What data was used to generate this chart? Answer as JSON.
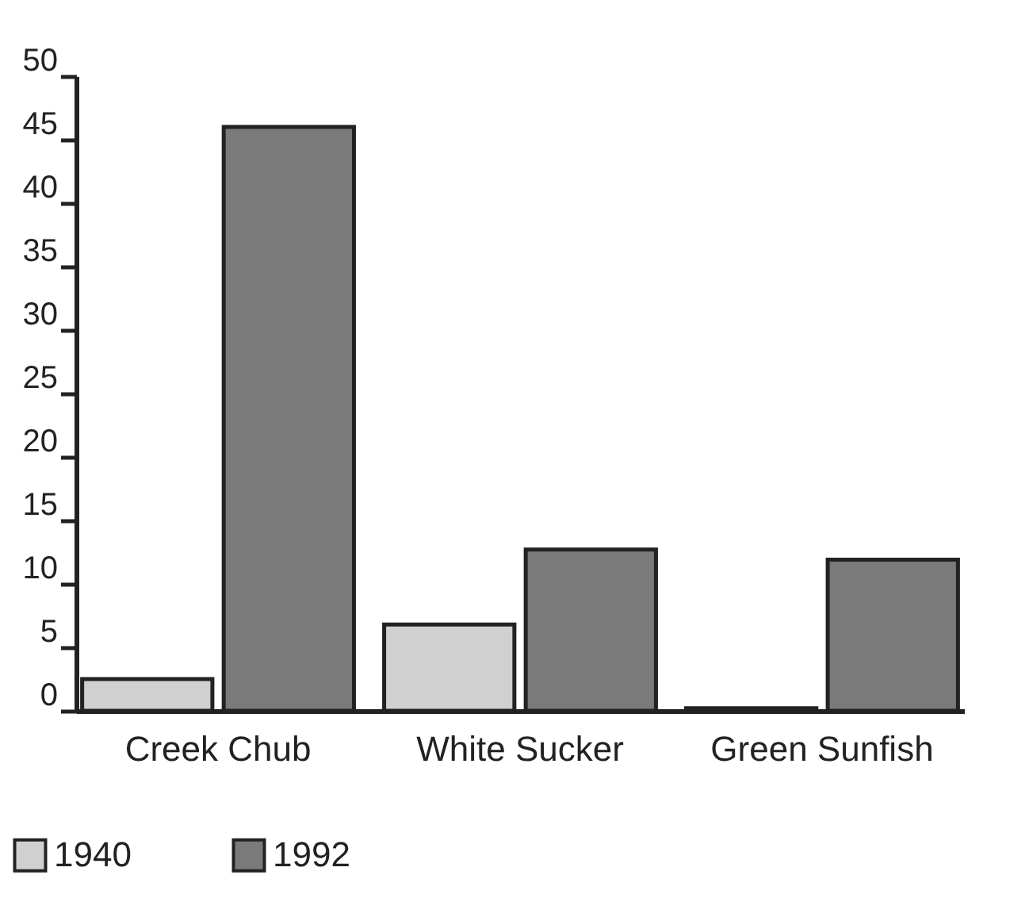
{
  "chart_data": {
    "type": "bar",
    "categories": [
      "Creek Chub",
      "White Sucker",
      "Green Sunfish"
    ],
    "series": [
      {
        "name": "1940",
        "color": "#d0d0d0",
        "values": [
          2.5,
          6.8,
          0.2
        ]
      },
      {
        "name": "1992",
        "color": "#7a7a7a",
        "values": [
          46,
          12.7,
          11.9
        ]
      }
    ],
    "ylim": [
      0,
      50
    ],
    "yticks": [
      0,
      5,
      10,
      15,
      20,
      25,
      30,
      35,
      40,
      45,
      50
    ],
    "grid": false,
    "legend": "bottom left"
  }
}
